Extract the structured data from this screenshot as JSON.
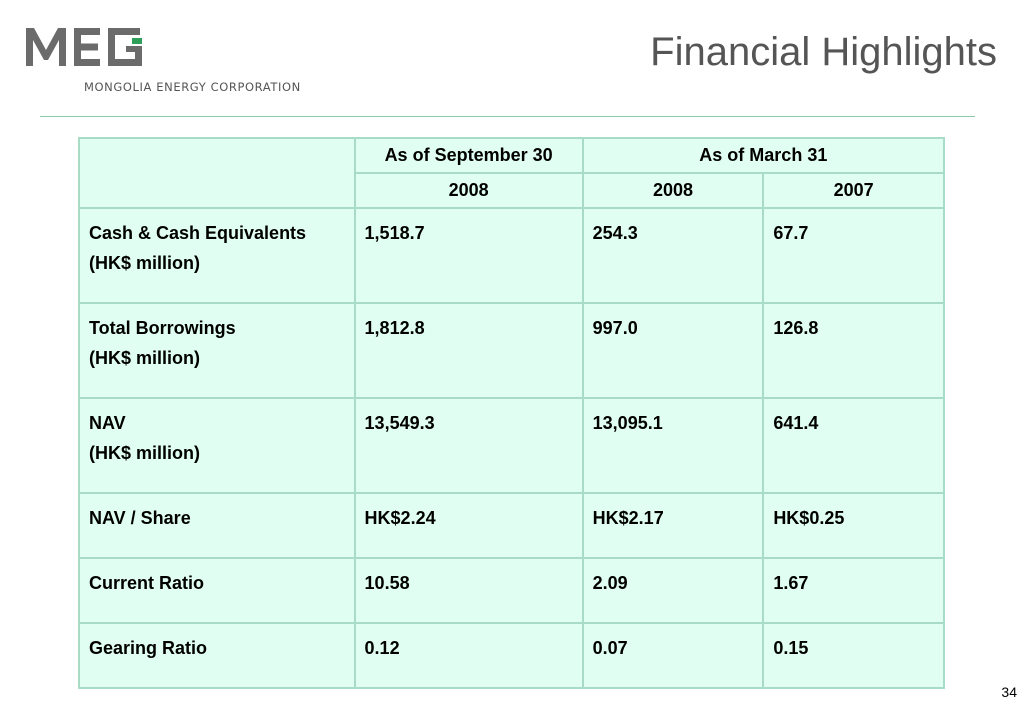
{
  "header": {
    "logo_text": "MEG",
    "logo_subtitle": "MONGOLIA ENERGY CORPORATION",
    "title": "Financial Highlights"
  },
  "table": {
    "group_headers": [
      "As of September 30",
      "As of March 31"
    ],
    "year_headers": [
      "2008",
      "2008",
      "2007"
    ],
    "rows": [
      {
        "label_line1": "Cash & Cash Equivalents",
        "label_line2": "(HK$ million)",
        "values": [
          "1,518.7",
          "254.3",
          "67.7"
        ]
      },
      {
        "label_line1": "Total Borrowings",
        "label_line2": "(HK$ million)",
        "values": [
          "1,812.8",
          "997.0",
          "126.8"
        ]
      },
      {
        "label_line1": "NAV",
        "label_line2": "(HK$ million)",
        "values": [
          "13,549.3",
          "13,095.1",
          "641.4"
        ]
      },
      {
        "label_line1": "NAV / Share",
        "label_line2": "",
        "values": [
          "HK$2.24",
          "HK$2.17",
          "HK$0.25"
        ]
      },
      {
        "label_line1": "Current Ratio",
        "label_line2": "",
        "values": [
          "10.58",
          "2.09",
          "1.67"
        ]
      },
      {
        "label_line1": "Gearing Ratio",
        "label_line2": "",
        "values": [
          "0.12",
          "0.07",
          "0.15"
        ]
      }
    ]
  },
  "footer": {
    "page_number": "34"
  },
  "colors": {
    "logo_gray": "#6b6b6b",
    "logo_green": "#2e9e5b",
    "table_fill": "#e0fff2",
    "table_border": "#a9dcc6",
    "rule": "#8cc9ad",
    "title": "#555555"
  }
}
